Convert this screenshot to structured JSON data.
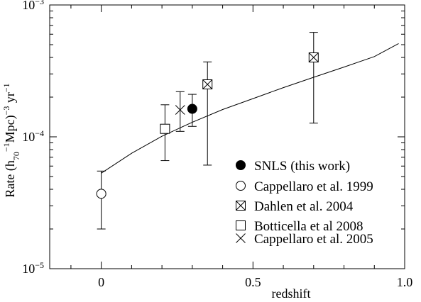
{
  "chart_data": {
    "type": "scatter",
    "xlabel": "redshift",
    "ylabel": {
      "prefix": "Rate  (h",
      "sub": "70",
      "sup1": "−1",
      "middle": "Mpc)",
      "sup2": "−3",
      "suffix": " yr",
      "sup3": "−1"
    },
    "xlim": [
      -0.17,
      1.0
    ],
    "ylim": [
      1e-05,
      0.001
    ],
    "yscale": "log",
    "xticks": [
      {
        "value": 0,
        "label": "0"
      },
      {
        "value": 0.5,
        "label": "0.5"
      },
      {
        "value": 1.0,
        "label": "1.0"
      }
    ],
    "yticks": [
      {
        "value": 1e-05,
        "base": "10",
        "exp": "−5"
      },
      {
        "value": 0.0001,
        "base": "10",
        "exp": "−4"
      },
      {
        "value": 0.001,
        "base": "10",
        "exp": "−3"
      }
    ],
    "legend_position": "bottom-right",
    "series": [
      {
        "name": "SNLS (this work)",
        "marker": "filled-circle",
        "points": [
          {
            "x": 0.3,
            "y": 0.000163,
            "ylow": 0.00012,
            "yhigh": 0.00021
          }
        ]
      },
      {
        "name": "Cappellaro et al. 1999",
        "marker": "open-circle",
        "points": [
          {
            "x": 0.0,
            "y": 3.7e-05,
            "ylow": 2e-05,
            "yhigh": 5.5e-05
          }
        ]
      },
      {
        "name": "Dahlen et al. 2004",
        "marker": "crossed-square",
        "points": [
          {
            "x": 0.35,
            "y": 0.00025,
            "ylow": 6.1e-05,
            "yhigh": 0.00037
          },
          {
            "x": 0.7,
            "y": 0.0004,
            "ylow": 0.000127,
            "yhigh": 0.00062
          }
        ]
      },
      {
        "name": "Botticella et al 2008",
        "marker": "open-square",
        "points": [
          {
            "x": 0.21,
            "y": 0.000115,
            "ylow": 6.6e-05,
            "yhigh": 0.000175
          }
        ]
      },
      {
        "name": "Cappellaro et al. 2005",
        "marker": "x",
        "points": [
          {
            "x": 0.26,
            "y": 0.00016,
            "ylow": 0.00011,
            "yhigh": 0.00022
          }
        ]
      }
    ],
    "model_curve": {
      "x": [
        0.0,
        0.1,
        0.2,
        0.3,
        0.4,
        0.5,
        0.6,
        0.7,
        0.8,
        0.9,
        0.98
      ],
      "y": [
        5.3e-05,
        7.5e-05,
        0.000101,
        0.000129,
        0.000161,
        0.000195,
        0.000236,
        0.000283,
        0.000338,
        0.000406,
        0.00051
      ]
    }
  },
  "colors": {
    "ink": "#000000",
    "background": "#ffffff"
  }
}
